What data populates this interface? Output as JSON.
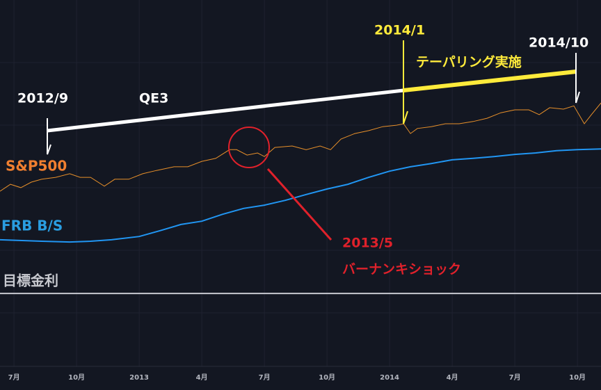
{
  "chart_data": {
    "type": "line",
    "xlim": [
      -0.67,
      28.13
    ],
    "ylim": [
      0,
      100
    ],
    "xticks": [
      {
        "value": 0,
        "label": "7月"
      },
      {
        "value": 3,
        "label": "10月"
      },
      {
        "value": 6,
        "label": "2013"
      },
      {
        "value": 9,
        "label": "4月"
      },
      {
        "value": 12,
        "label": "7月"
      },
      {
        "value": 15,
        "label": "10月"
      },
      {
        "value": 18,
        "label": "2014"
      },
      {
        "value": 21,
        "label": "4月"
      },
      {
        "value": 24,
        "label": "7月"
      },
      {
        "value": 27,
        "label": "10月"
      }
    ],
    "grid": true,
    "series": [
      {
        "name": "S&P500",
        "color": "#e8902a",
        "width": 1,
        "x": [
          -0.67,
          -0.17,
          0.33,
          0.83,
          1.33,
          2,
          2.67,
          3.17,
          3.67,
          4.33,
          4.83,
          5.5,
          6.17,
          6.83,
          7.67,
          8.33,
          9,
          9.67,
          10.33,
          10.67,
          11.17,
          11.67,
          12,
          12.5,
          13.33,
          14,
          14.67,
          15.17,
          15.67,
          16.33,
          17,
          17.67,
          18.33,
          18.67,
          19,
          19.33,
          20,
          20.67,
          21.33,
          22,
          22.67,
          23.33,
          24,
          24.67,
          25.17,
          25.67,
          26.33,
          26.83,
          27.33,
          27.67,
          28.13
        ],
        "values": [
          47.6,
          49.5,
          48.6,
          50.1,
          50.9,
          51.4,
          52.4,
          51.4,
          51.4,
          49.0,
          50.9,
          50.9,
          52.4,
          53.3,
          54.3,
          54.3,
          55.8,
          56.6,
          59.0,
          59.0,
          57.5,
          58.1,
          57.1,
          59.6,
          60.0,
          59.0,
          60.0,
          59.0,
          61.9,
          63.4,
          64.2,
          65.3,
          65.7,
          66.1,
          63.4,
          64.8,
          65.3,
          66.1,
          66.1,
          66.7,
          67.6,
          69.1,
          69.9,
          69.9,
          68.6,
          70.5,
          70.1,
          71.0,
          66.1,
          68.6,
          71.8
        ]
      },
      {
        "name": "FRB B/S",
        "color": "#2196f3",
        "width": 2,
        "x": [
          -0.67,
          1.33,
          2.67,
          3.67,
          4.67,
          6,
          7,
          8,
          9,
          10,
          11,
          12,
          13,
          14,
          15,
          16,
          17,
          18,
          19,
          20,
          21,
          22,
          23,
          24,
          25,
          26,
          27,
          28.13
        ],
        "values": [
          34.3,
          33.9,
          33.7,
          33.9,
          34.3,
          35.2,
          36.8,
          38.5,
          39.4,
          41.3,
          42.9,
          43.8,
          45.1,
          46.7,
          48.2,
          49.5,
          51.4,
          53.1,
          54.3,
          55.2,
          56.2,
          56.6,
          57.1,
          57.7,
          58.1,
          58.7,
          59.0,
          59.2
        ]
      },
      {
        "name": "目標金利",
        "color": "#c8cad0",
        "width": 2,
        "x": [
          -0.67,
          28.13
        ],
        "values": [
          19.6,
          19.6
        ]
      }
    ],
    "annotations": [
      "2012/9",
      "QE3",
      "2014/1",
      "テーパリング実施",
      "2014/10",
      "2013/5",
      "バーナンキショック"
    ]
  }
}
